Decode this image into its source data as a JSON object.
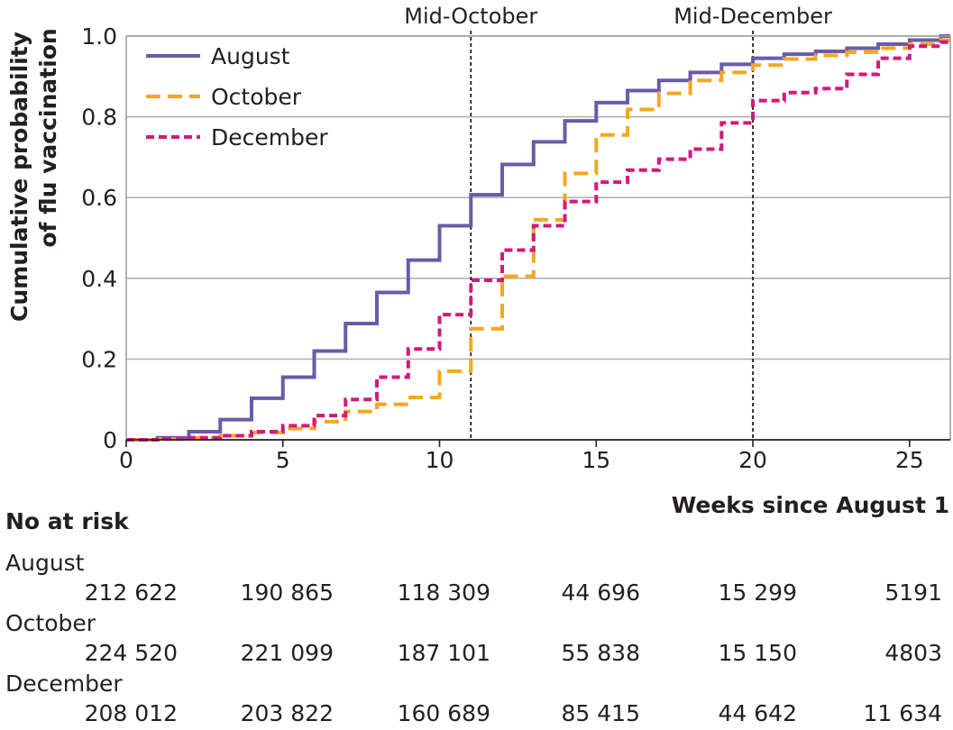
{
  "chart_data": {
    "type": "line",
    "subtype": "step",
    "ylabel_line1": "Cumulative probability",
    "ylabel_line2": "of flu vaccination",
    "xlabel": "Weeks since August 1",
    "xlim": [
      0,
      26.3
    ],
    "ylim": [
      0,
      1.0
    ],
    "xticks": [
      0,
      5,
      10,
      15,
      20,
      25
    ],
    "xtick_labels": [
      "0",
      "5",
      "10",
      "15",
      "20",
      "25"
    ],
    "yticks": [
      0,
      0.2,
      0.4,
      0.6,
      0.8,
      1.0
    ],
    "ytick_labels": [
      "0",
      "0.2",
      "0.4",
      "0.6",
      "0.8",
      "1.0"
    ],
    "grid": "horizontal",
    "legend_position": "top-left",
    "annotations": [
      {
        "x": 11,
        "label": "Mid-October"
      },
      {
        "x": 20,
        "label": "Mid-December"
      }
    ],
    "series": [
      {
        "name": "August",
        "color": "#6b5ba6",
        "dash": "solid",
        "x": [
          0,
          1,
          2,
          3,
          4,
          5,
          6,
          7,
          8,
          9,
          10,
          11,
          12,
          13,
          14,
          15,
          16,
          17,
          18,
          19,
          20,
          21,
          22,
          23,
          24,
          25,
          26
        ],
        "y": [
          0.0,
          0.005,
          0.02,
          0.05,
          0.103,
          0.155,
          0.22,
          0.288,
          0.365,
          0.445,
          0.53,
          0.607,
          0.682,
          0.738,
          0.79,
          0.835,
          0.865,
          0.89,
          0.91,
          0.93,
          0.945,
          0.955,
          0.962,
          0.97,
          0.98,
          0.99,
          1.0
        ]
      },
      {
        "name": "October",
        "color": "#f5a623",
        "dash": "dashed",
        "x": [
          0,
          1,
          2,
          3,
          4,
          5,
          6,
          7,
          8,
          9,
          10,
          11,
          12,
          13,
          14,
          15,
          16,
          17,
          18,
          19,
          20,
          21,
          22,
          23,
          24,
          25,
          26
        ],
        "y": [
          0.0,
          0.002,
          0.005,
          0.01,
          0.018,
          0.028,
          0.045,
          0.07,
          0.088,
          0.105,
          0.17,
          0.275,
          0.405,
          0.545,
          0.66,
          0.755,
          0.818,
          0.858,
          0.89,
          0.91,
          0.928,
          0.943,
          0.952,
          0.96,
          0.97,
          0.98,
          0.99
        ]
      },
      {
        "name": "December",
        "color": "#d4187c",
        "dash": "dotted",
        "x": [
          0,
          1,
          2,
          3,
          4,
          5,
          6,
          7,
          8,
          9,
          10,
          11,
          12,
          13,
          14,
          15,
          16,
          17,
          18,
          19,
          20,
          21,
          22,
          23,
          24,
          25,
          26
        ],
        "y": [
          0.0,
          0.002,
          0.005,
          0.01,
          0.02,
          0.035,
          0.06,
          0.1,
          0.155,
          0.225,
          0.31,
          0.395,
          0.47,
          0.53,
          0.59,
          0.638,
          0.668,
          0.695,
          0.72,
          0.785,
          0.84,
          0.86,
          0.87,
          0.905,
          0.945,
          0.975,
          0.985
        ]
      }
    ]
  },
  "risk_table": {
    "title": "No at risk",
    "groups": [
      {
        "name": "August",
        "values": [
          "212 622",
          "190 865",
          "118 309",
          "44 696",
          "15 299",
          "5191"
        ]
      },
      {
        "name": "October",
        "values": [
          "224 520",
          "221 099",
          "187 101",
          "55 838",
          "15 150",
          "4803"
        ]
      },
      {
        "name": "December",
        "values": [
          "208 012",
          "203 822",
          "160 689",
          "85 415",
          "44 642",
          "11 634"
        ]
      }
    ]
  }
}
